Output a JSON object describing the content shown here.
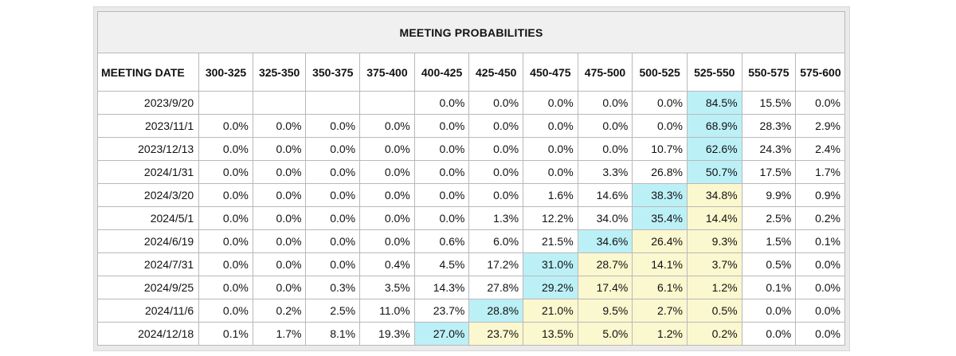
{
  "title": "MEETING PROBABILITIES",
  "date_header": "MEETING DATE",
  "columns": [
    "300-325",
    "325-350",
    "350-375",
    "375-400",
    "400-425",
    "425-450",
    "450-475",
    "475-500",
    "500-525",
    "525-550",
    "550-575",
    "575-600"
  ],
  "colors": {
    "highlight_max": "#bcf0f7",
    "highlight_current": "#fbf7cf",
    "title_bg": "#f0f0f0"
  },
  "rows": [
    {
      "date": "2023/9/20",
      "values": [
        "",
        "",
        "",
        "",
        "0.0%",
        "0.0%",
        "0.0%",
        "0.0%",
        "0.0%",
        "84.5%",
        "15.5%",
        "0.0%"
      ],
      "hl": [
        "",
        "",
        "",
        "",
        "",
        "",
        "",
        "",
        "",
        "b",
        "",
        ""
      ]
    },
    {
      "date": "2023/11/1",
      "values": [
        "0.0%",
        "0.0%",
        "0.0%",
        "0.0%",
        "0.0%",
        "0.0%",
        "0.0%",
        "0.0%",
        "0.0%",
        "68.9%",
        "28.3%",
        "2.9%"
      ],
      "hl": [
        "",
        "",
        "",
        "",
        "",
        "",
        "",
        "",
        "",
        "b",
        "",
        ""
      ]
    },
    {
      "date": "2023/12/13",
      "values": [
        "0.0%",
        "0.0%",
        "0.0%",
        "0.0%",
        "0.0%",
        "0.0%",
        "0.0%",
        "0.0%",
        "10.7%",
        "62.6%",
        "24.3%",
        "2.4%"
      ],
      "hl": [
        "",
        "",
        "",
        "",
        "",
        "",
        "",
        "",
        "",
        "b",
        "",
        ""
      ]
    },
    {
      "date": "2024/1/31",
      "values": [
        "0.0%",
        "0.0%",
        "0.0%",
        "0.0%",
        "0.0%",
        "0.0%",
        "0.0%",
        "3.3%",
        "26.8%",
        "50.7%",
        "17.5%",
        "1.7%"
      ],
      "hl": [
        "",
        "",
        "",
        "",
        "",
        "",
        "",
        "",
        "",
        "b",
        "",
        ""
      ]
    },
    {
      "date": "2024/3/20",
      "values": [
        "0.0%",
        "0.0%",
        "0.0%",
        "0.0%",
        "0.0%",
        "0.0%",
        "1.6%",
        "14.6%",
        "38.3%",
        "34.8%",
        "9.9%",
        "0.9%"
      ],
      "hl": [
        "",
        "",
        "",
        "",
        "",
        "",
        "",
        "",
        "b",
        "y",
        "",
        ""
      ]
    },
    {
      "date": "2024/5/1",
      "values": [
        "0.0%",
        "0.0%",
        "0.0%",
        "0.0%",
        "0.0%",
        "1.3%",
        "12.2%",
        "34.0%",
        "35.4%",
        "14.4%",
        "2.5%",
        "0.2%"
      ],
      "hl": [
        "",
        "",
        "",
        "",
        "",
        "",
        "",
        "",
        "b",
        "y",
        "",
        ""
      ]
    },
    {
      "date": "2024/6/19",
      "values": [
        "0.0%",
        "0.0%",
        "0.0%",
        "0.0%",
        "0.6%",
        "6.0%",
        "21.5%",
        "34.6%",
        "26.4%",
        "9.3%",
        "1.5%",
        "0.1%"
      ],
      "hl": [
        "",
        "",
        "",
        "",
        "",
        "",
        "",
        "b",
        "y",
        "y",
        "",
        ""
      ]
    },
    {
      "date": "2024/7/31",
      "values": [
        "0.0%",
        "0.0%",
        "0.0%",
        "0.4%",
        "4.5%",
        "17.2%",
        "31.0%",
        "28.7%",
        "14.1%",
        "3.7%",
        "0.5%",
        "0.0%"
      ],
      "hl": [
        "",
        "",
        "",
        "",
        "",
        "",
        "b",
        "y",
        "y",
        "y",
        "",
        ""
      ]
    },
    {
      "date": "2024/9/25",
      "values": [
        "0.0%",
        "0.0%",
        "0.3%",
        "3.5%",
        "14.3%",
        "27.8%",
        "29.2%",
        "17.4%",
        "6.1%",
        "1.2%",
        "0.1%",
        "0.0%"
      ],
      "hl": [
        "",
        "",
        "",
        "",
        "",
        "",
        "b",
        "y",
        "y",
        "y",
        "",
        ""
      ]
    },
    {
      "date": "2024/11/6",
      "values": [
        "0.0%",
        "0.2%",
        "2.5%",
        "11.0%",
        "23.7%",
        "28.8%",
        "21.0%",
        "9.5%",
        "2.7%",
        "0.5%",
        "0.0%",
        "0.0%"
      ],
      "hl": [
        "",
        "",
        "",
        "",
        "",
        "b",
        "y",
        "y",
        "y",
        "y",
        "",
        ""
      ]
    },
    {
      "date": "2024/12/18",
      "values": [
        "0.1%",
        "1.7%",
        "8.1%",
        "19.3%",
        "27.0%",
        "23.7%",
        "13.5%",
        "5.0%",
        "1.2%",
        "0.2%",
        "0.0%",
        "0.0%"
      ],
      "hl": [
        "",
        "",
        "",
        "",
        "b",
        "y",
        "y",
        "y",
        "y",
        "y",
        "",
        ""
      ]
    }
  ]
}
